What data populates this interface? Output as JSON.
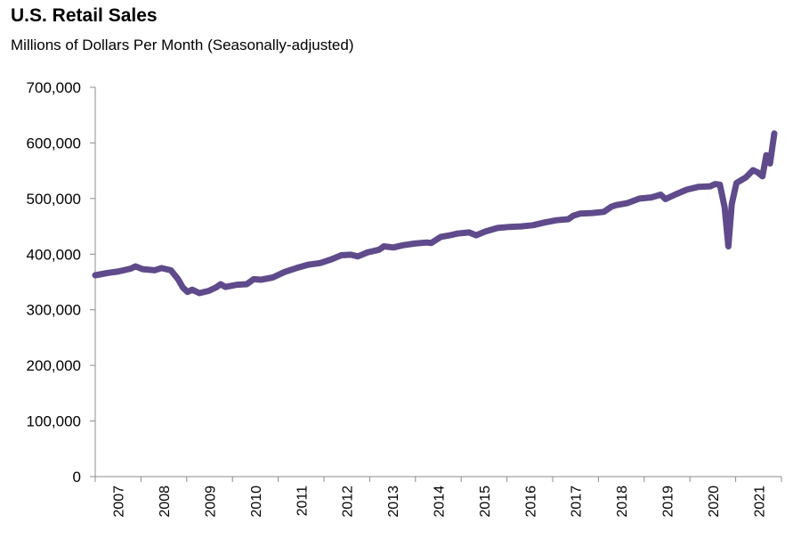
{
  "chart_data": {
    "type": "line",
    "title": "U.S. Retail Sales",
    "subtitle": "Millions of Dollars Per Month (Seasonally-adjusted)",
    "xlabel": "",
    "ylabel": "",
    "ylim": [
      0,
      700000
    ],
    "yticks": [
      "0",
      "100,000",
      "200,000",
      "300,000",
      "400,000",
      "500,000",
      "600,000",
      "700,000"
    ],
    "xlim": [
      2007.0,
      2021.5
    ],
    "xticks": [
      "2007",
      "2008",
      "2009",
      "2010",
      "2011",
      "2012",
      "2013",
      "2014",
      "2015",
      "2016",
      "2017",
      "2018",
      "2019",
      "2020",
      "2021"
    ],
    "grid": false,
    "series": [
      {
        "color": "#5f4b8b",
        "points": [
          [
            2007.0,
            362000
          ],
          [
            2007.25,
            366000
          ],
          [
            2007.5,
            369000
          ],
          [
            2007.75,
            374000
          ],
          [
            2007.85,
            378000
          ],
          [
            2008.0,
            373000
          ],
          [
            2008.25,
            371000
          ],
          [
            2008.4,
            375000
          ],
          [
            2008.6,
            371000
          ],
          [
            2008.75,
            355000
          ],
          [
            2008.85,
            340000
          ],
          [
            2008.95,
            332000
          ],
          [
            2009.05,
            336000
          ],
          [
            2009.2,
            330000
          ],
          [
            2009.4,
            334000
          ],
          [
            2009.55,
            340000
          ],
          [
            2009.65,
            346000
          ],
          [
            2009.75,
            341000
          ],
          [
            2010.0,
            345000
          ],
          [
            2010.2,
            346000
          ],
          [
            2010.35,
            355000
          ],
          [
            2010.5,
            354000
          ],
          [
            2010.75,
            358000
          ],
          [
            2011.0,
            368000
          ],
          [
            2011.25,
            375000
          ],
          [
            2011.5,
            381000
          ],
          [
            2011.75,
            384000
          ],
          [
            2012.0,
            391000
          ],
          [
            2012.2,
            398000
          ],
          [
            2012.4,
            399000
          ],
          [
            2012.55,
            396000
          ],
          [
            2012.75,
            403000
          ],
          [
            2013.0,
            408000
          ],
          [
            2013.1,
            414000
          ],
          [
            2013.3,
            412000
          ],
          [
            2013.5,
            416000
          ],
          [
            2013.75,
            419000
          ],
          [
            2014.0,
            421000
          ],
          [
            2014.1,
            420000
          ],
          [
            2014.3,
            431000
          ],
          [
            2014.5,
            434000
          ],
          [
            2014.65,
            437000
          ],
          [
            2014.9,
            439000
          ],
          [
            2015.05,
            434000
          ],
          [
            2015.25,
            441000
          ],
          [
            2015.5,
            447000
          ],
          [
            2015.75,
            449000
          ],
          [
            2016.0,
            450000
          ],
          [
            2016.25,
            452000
          ],
          [
            2016.5,
            457000
          ],
          [
            2016.75,
            461000
          ],
          [
            2017.0,
            463000
          ],
          [
            2017.1,
            469000
          ],
          [
            2017.25,
            473000
          ],
          [
            2017.5,
            474000
          ],
          [
            2017.75,
            476000
          ],
          [
            2017.9,
            485000
          ],
          [
            2018.0,
            488000
          ],
          [
            2018.25,
            492000
          ],
          [
            2018.5,
            500000
          ],
          [
            2018.75,
            502000
          ],
          [
            2018.95,
            507000
          ],
          [
            2019.05,
            499000
          ],
          [
            2019.25,
            507000
          ],
          [
            2019.5,
            516000
          ],
          [
            2019.75,
            521000
          ],
          [
            2020.0,
            522000
          ],
          [
            2020.1,
            526000
          ],
          [
            2020.2,
            525000
          ],
          [
            2020.3,
            484000
          ],
          [
            2020.38,
            414000
          ],
          [
            2020.45,
            490000
          ],
          [
            2020.55,
            528000
          ],
          [
            2020.75,
            538000
          ],
          [
            2020.9,
            551000
          ],
          [
            2021.0,
            547000
          ],
          [
            2021.1,
            540000
          ],
          [
            2021.18,
            578000
          ],
          [
            2021.26,
            563000
          ],
          [
            2021.35,
            617000
          ]
        ]
      }
    ]
  }
}
